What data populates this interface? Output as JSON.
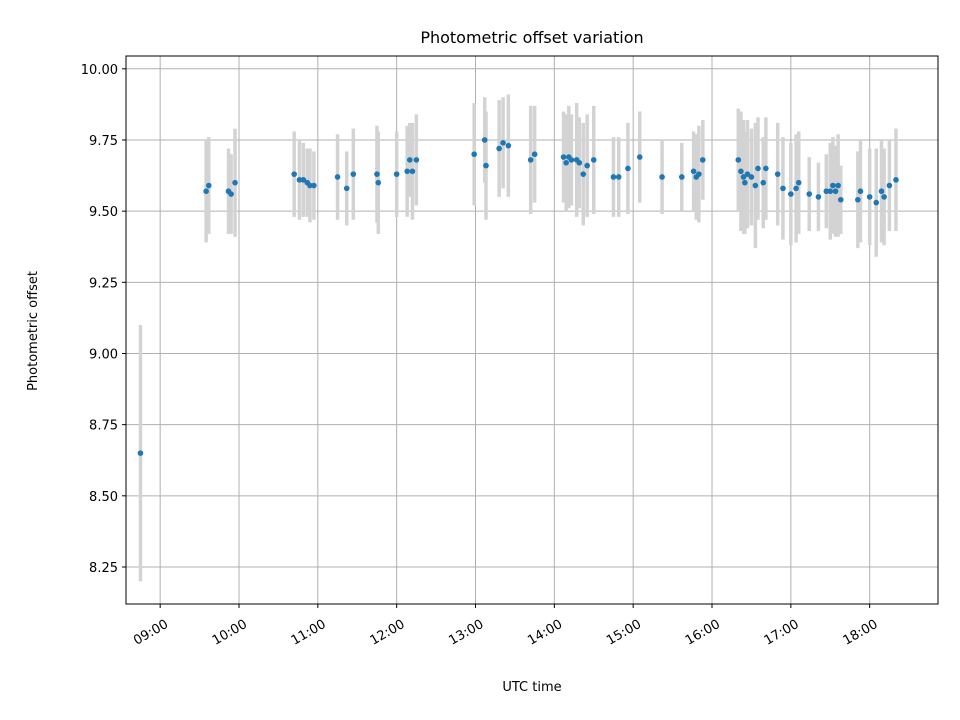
{
  "chart_data": {
    "type": "scatter",
    "title": "Photometric offset variation",
    "xlabel": "UTC time",
    "ylabel": "Photometric offset",
    "x_unit": "UTC time (HH:MM)",
    "xlim": [
      "08:34",
      "18:52"
    ],
    "ylim": [
      8.12,
      10.045
    ],
    "grid": true,
    "x_ticks": [
      "09:00",
      "10:00",
      "11:00",
      "12:00",
      "13:00",
      "14:00",
      "15:00",
      "16:00",
      "17:00",
      "18:00"
    ],
    "y_ticks": [
      10.0,
      9.75,
      9.5,
      9.25,
      9.0,
      8.75,
      8.5,
      8.25
    ],
    "y_tick_labels": [
      "10.00",
      "9.75",
      "9.50",
      "9.25",
      "9.00",
      "8.75",
      "8.50",
      "8.25"
    ],
    "colors": {
      "points": "#1f77b4",
      "errorbars": "#d3d3d3",
      "grid": "#b0b0b0"
    },
    "series": [
      {
        "points": [
          {
            "x": "08:45",
            "y": 8.65,
            "err": 0.45
          },
          {
            "x": "09:35",
            "y": 9.57,
            "err": 0.18
          },
          {
            "x": "09:37",
            "y": 9.59,
            "err": 0.17
          },
          {
            "x": "09:52",
            "y": 9.57,
            "err": 0.15
          },
          {
            "x": "09:54",
            "y": 9.56,
            "err": 0.14
          },
          {
            "x": "09:57",
            "y": 9.6,
            "err": 0.19
          },
          {
            "x": "10:42",
            "y": 9.63,
            "err": 0.15
          },
          {
            "x": "10:46",
            "y": 9.61,
            "err": 0.14
          },
          {
            "x": "10:49",
            "y": 9.61,
            "err": 0.13
          },
          {
            "x": "10:52",
            "y": 9.6,
            "err": 0.12
          },
          {
            "x": "10:54",
            "y": 9.59,
            "err": 0.13
          },
          {
            "x": "10:57",
            "y": 9.59,
            "err": 0.12
          },
          {
            "x": "11:15",
            "y": 9.62,
            "err": 0.15
          },
          {
            "x": "11:22",
            "y": 9.58,
            "err": 0.13
          },
          {
            "x": "11:27",
            "y": 9.63,
            "err": 0.16
          },
          {
            "x": "11:45",
            "y": 9.63,
            "err": 0.17
          },
          {
            "x": "11:46",
            "y": 9.6,
            "err": 0.18
          },
          {
            "x": "12:00",
            "y": 9.63,
            "err": 0.15
          },
          {
            "x": "12:08",
            "y": 9.64,
            "err": 0.16
          },
          {
            "x": "12:10",
            "y": 9.68,
            "err": 0.13
          },
          {
            "x": "12:12",
            "y": 9.64,
            "err": 0.17
          },
          {
            "x": "12:15",
            "y": 9.68,
            "err": 0.16
          },
          {
            "x": "12:59",
            "y": 9.7,
            "err": 0.18
          },
          {
            "x": "13:07",
            "y": 9.75,
            "err": 0.15
          },
          {
            "x": "13:08",
            "y": 9.66,
            "err": 0.19
          },
          {
            "x": "13:18",
            "y": 9.72,
            "err": 0.17
          },
          {
            "x": "13:21",
            "y": 9.74,
            "err": 0.16
          },
          {
            "x": "13:25",
            "y": 9.73,
            "err": 0.18
          },
          {
            "x": "13:42",
            "y": 9.68,
            "err": 0.19
          },
          {
            "x": "13:45",
            "y": 9.7,
            "err": 0.17
          },
          {
            "x": "14:07",
            "y": 9.69,
            "err": 0.16
          },
          {
            "x": "14:09",
            "y": 9.67,
            "err": 0.17
          },
          {
            "x": "14:11",
            "y": 9.69,
            "err": 0.18
          },
          {
            "x": "14:13",
            "y": 9.68,
            "err": 0.16
          },
          {
            "x": "14:17",
            "y": 9.68,
            "err": 0.2
          },
          {
            "x": "14:19",
            "y": 9.67,
            "err": 0.16
          },
          {
            "x": "14:22",
            "y": 9.63,
            "err": 0.18
          },
          {
            "x": "14:25",
            "y": 9.66,
            "err": 0.18
          },
          {
            "x": "14:30",
            "y": 9.68,
            "err": 0.19
          },
          {
            "x": "14:45",
            "y": 9.62,
            "err": 0.14
          },
          {
            "x": "14:49",
            "y": 9.62,
            "err": 0.14
          },
          {
            "x": "14:56",
            "y": 9.65,
            "err": 0.16
          },
          {
            "x": "15:05",
            "y": 9.69,
            "err": 0.16
          },
          {
            "x": "15:22",
            "y": 9.62,
            "err": 0.13
          },
          {
            "x": "15:37",
            "y": 9.62,
            "err": 0.12
          },
          {
            "x": "15:46",
            "y": 9.64,
            "err": 0.14
          },
          {
            "x": "15:48",
            "y": 9.62,
            "err": 0.15
          },
          {
            "x": "15:50",
            "y": 9.63,
            "err": 0.17
          },
          {
            "x": "15:53",
            "y": 9.68,
            "err": 0.14
          },
          {
            "x": "16:20",
            "y": 9.68,
            "err": 0.18
          },
          {
            "x": "16:22",
            "y": 9.64,
            "err": 0.21
          },
          {
            "x": "16:24",
            "y": 9.62,
            "err": 0.2
          },
          {
            "x": "16:25",
            "y": 9.6,
            "err": 0.18
          },
          {
            "x": "16:27",
            "y": 9.63,
            "err": 0.19
          },
          {
            "x": "16:30",
            "y": 9.62,
            "err": 0.17
          },
          {
            "x": "16:33",
            "y": 9.59,
            "err": 0.22
          },
          {
            "x": "16:35",
            "y": 9.65,
            "err": 0.18
          },
          {
            "x": "16:39",
            "y": 9.6,
            "err": 0.16
          },
          {
            "x": "16:41",
            "y": 9.65,
            "err": 0.18
          },
          {
            "x": "16:50",
            "y": 9.63,
            "err": 0.18
          },
          {
            "x": "16:54",
            "y": 9.58,
            "err": 0.18
          },
          {
            "x": "17:00",
            "y": 9.56,
            "err": 0.18
          },
          {
            "x": "17:04",
            "y": 9.58,
            "err": 0.19
          },
          {
            "x": "17:06",
            "y": 9.6,
            "err": 0.18
          },
          {
            "x": "17:14",
            "y": 9.56,
            "err": 0.13
          },
          {
            "x": "17:21",
            "y": 9.55,
            "err": 0.12
          },
          {
            "x": "17:27",
            "y": 9.57,
            "err": 0.13
          },
          {
            "x": "17:30",
            "y": 9.57,
            "err": 0.17
          },
          {
            "x": "17:32",
            "y": 9.59,
            "err": 0.17
          },
          {
            "x": "17:34",
            "y": 9.57,
            "err": 0.16
          },
          {
            "x": "17:36",
            "y": 9.59,
            "err": 0.18
          },
          {
            "x": "17:38",
            "y": 9.54,
            "err": 0.12
          },
          {
            "x": "17:51",
            "y": 9.54,
            "err": 0.17
          },
          {
            "x": "17:53",
            "y": 9.57,
            "err": 0.18
          },
          {
            "x": "18:00",
            "y": 9.55,
            "err": 0.17
          },
          {
            "x": "18:05",
            "y": 9.53,
            "err": 0.19
          },
          {
            "x": "18:09",
            "y": 9.57,
            "err": 0.18
          },
          {
            "x": "18:11",
            "y": 9.55,
            "err": 0.17
          },
          {
            "x": "18:15",
            "y": 9.59,
            "err": 0.16
          },
          {
            "x": "18:20",
            "y": 9.61,
            "err": 0.18
          }
        ]
      }
    ]
  }
}
